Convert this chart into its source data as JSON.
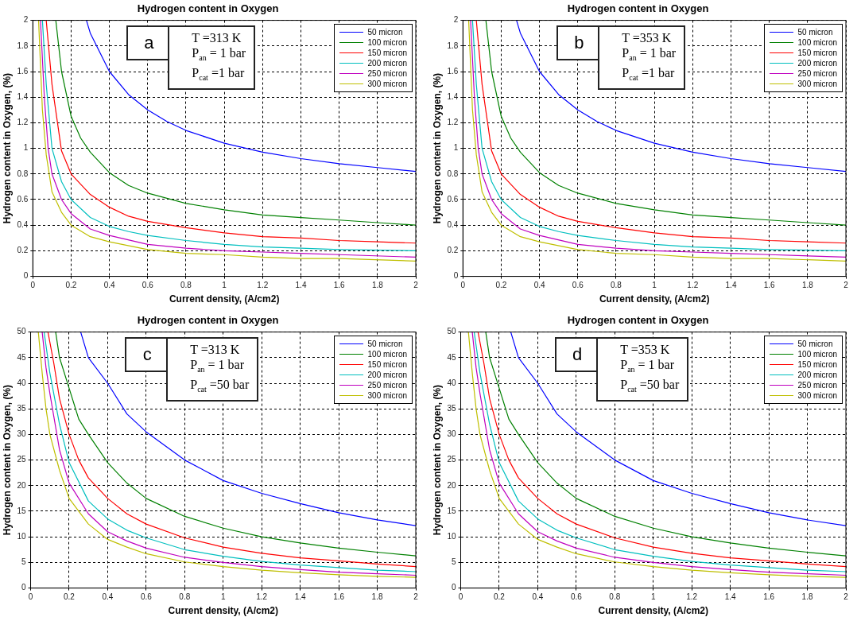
{
  "chart_data": [
    {
      "type": "line",
      "title": "Hydrogen content in Oxygen",
      "xlabel": "Current density, (A/cm2)",
      "ylabel": "Hydrogen content in Oxygen, (%)",
      "xlim": [
        0,
        2
      ],
      "ylim": [
        0,
        2
      ],
      "xticks": [
        0,
        0.2,
        0.4,
        0.6,
        0.8,
        1,
        1.2,
        1.4,
        1.6,
        1.8,
        2
      ],
      "yticks": [
        0,
        0.2,
        0.4,
        0.6,
        0.8,
        1,
        1.2,
        1.4,
        1.6,
        1.8,
        2
      ],
      "grid": true,
      "legend": "top right",
      "annotations": [
        "a",
        "T =313 K",
        "P$_{an}$ = 1 bar",
        "P$_{cat}$ =1 bar"
      ],
      "series": [
        {
          "name": "50 micron",
          "color": "#0000ff",
          "x": [
            0.28,
            0.3,
            0.4,
            0.5,
            0.6,
            0.7,
            0.8,
            1.0,
            1.2,
            1.4,
            1.6,
            1.8,
            2.0
          ],
          "values": [
            2.0,
            1.9,
            1.6,
            1.42,
            1.3,
            1.21,
            1.14,
            1.04,
            0.97,
            0.92,
            0.88,
            0.85,
            0.82
          ]
        },
        {
          "name": "100 micron",
          "color": "#008000",
          "x": [
            0.12,
            0.15,
            0.2,
            0.25,
            0.3,
            0.4,
            0.5,
            0.6,
            0.8,
            1.0,
            1.2,
            1.4,
            1.6,
            1.8,
            2.0
          ],
          "values": [
            2.0,
            1.6,
            1.25,
            1.08,
            0.97,
            0.81,
            0.71,
            0.65,
            0.57,
            0.52,
            0.48,
            0.46,
            0.44,
            0.42,
            0.4
          ]
        },
        {
          "name": "150 micron",
          "color": "#ff0000",
          "x": [
            0.07,
            0.1,
            0.15,
            0.2,
            0.3,
            0.4,
            0.5,
            0.6,
            0.8,
            1.0,
            1.2,
            1.4,
            1.6,
            1.8,
            2.0
          ],
          "values": [
            2.0,
            1.5,
            0.98,
            0.8,
            0.64,
            0.54,
            0.47,
            0.43,
            0.38,
            0.34,
            0.31,
            0.3,
            0.28,
            0.27,
            0.26
          ]
        },
        {
          "name": "200 micron",
          "color": "#00bfbf",
          "x": [
            0.05,
            0.07,
            0.1,
            0.15,
            0.2,
            0.3,
            0.4,
            0.5,
            0.6,
            0.8,
            1.0,
            1.2,
            1.4,
            1.6,
            2.0
          ],
          "values": [
            2.0,
            1.5,
            1.0,
            0.74,
            0.6,
            0.46,
            0.39,
            0.35,
            0.32,
            0.28,
            0.25,
            0.23,
            0.22,
            0.21,
            0.2
          ]
        },
        {
          "name": "250 micron",
          "color": "#bf00bf",
          "x": [
            0.04,
            0.06,
            0.08,
            0.1,
            0.15,
            0.2,
            0.3,
            0.4,
            0.6,
            0.8,
            1.0,
            1.2,
            1.4,
            1.6,
            2.0
          ],
          "values": [
            2.0,
            1.4,
            1.0,
            0.8,
            0.6,
            0.49,
            0.37,
            0.32,
            0.25,
            0.22,
            0.2,
            0.19,
            0.18,
            0.17,
            0.15
          ]
        },
        {
          "name": "300 micron",
          "color": "#bfbf00",
          "x": [
            0.03,
            0.05,
            0.07,
            0.1,
            0.15,
            0.2,
            0.3,
            0.4,
            0.6,
            0.8,
            1.0,
            1.2,
            1.4,
            1.6,
            2.0
          ],
          "values": [
            2.0,
            1.3,
            0.95,
            0.66,
            0.5,
            0.4,
            0.31,
            0.27,
            0.21,
            0.18,
            0.17,
            0.15,
            0.14,
            0.14,
            0.12
          ]
        }
      ]
    },
    {
      "type": "line",
      "title": "Hydrogen content in Oxygen",
      "xlabel": "Current density, (A/cm2)",
      "ylabel": "Hydrogen content in Oxygen, (%)",
      "xlim": [
        0,
        2
      ],
      "ylim": [
        0,
        2
      ],
      "xticks": [
        0,
        0.2,
        0.4,
        0.6,
        0.8,
        1,
        1.2,
        1.4,
        1.6,
        1.8,
        2
      ],
      "yticks": [
        0,
        0.2,
        0.4,
        0.6,
        0.8,
        1,
        1.2,
        1.4,
        1.6,
        1.8,
        2
      ],
      "grid": true,
      "legend": "top right",
      "annotations": [
        "b",
        "T =353 K",
        "P$_{an}$ = 1 bar",
        "P$_{cat}$ =1 bar"
      ],
      "series": [
        {
          "name": "50 micron",
          "color": "#0000ff",
          "x": [
            0.28,
            0.3,
            0.4,
            0.5,
            0.6,
            0.7,
            0.8,
            1.0,
            1.2,
            1.4,
            1.6,
            1.8,
            2.0
          ],
          "values": [
            2.0,
            1.9,
            1.6,
            1.42,
            1.3,
            1.21,
            1.14,
            1.04,
            0.97,
            0.92,
            0.88,
            0.85,
            0.82
          ]
        },
        {
          "name": "100 micron",
          "color": "#008000",
          "x": [
            0.12,
            0.15,
            0.2,
            0.25,
            0.3,
            0.4,
            0.5,
            0.6,
            0.8,
            1.0,
            1.2,
            1.4,
            1.6,
            1.8,
            2.0
          ],
          "values": [
            2.0,
            1.6,
            1.25,
            1.08,
            0.97,
            0.81,
            0.71,
            0.65,
            0.57,
            0.52,
            0.48,
            0.46,
            0.44,
            0.42,
            0.4
          ]
        },
        {
          "name": "150 micron",
          "color": "#ff0000",
          "x": [
            0.07,
            0.1,
            0.15,
            0.2,
            0.3,
            0.4,
            0.5,
            0.6,
            0.8,
            1.0,
            1.2,
            1.4,
            1.6,
            1.8,
            2.0
          ],
          "values": [
            2.0,
            1.5,
            0.98,
            0.8,
            0.64,
            0.54,
            0.47,
            0.43,
            0.38,
            0.34,
            0.31,
            0.3,
            0.28,
            0.27,
            0.26
          ]
        },
        {
          "name": "200 micron",
          "color": "#00bfbf",
          "x": [
            0.05,
            0.07,
            0.1,
            0.15,
            0.2,
            0.3,
            0.4,
            0.5,
            0.6,
            0.8,
            1.0,
            1.2,
            1.4,
            1.6,
            2.0
          ],
          "values": [
            2.0,
            1.5,
            1.0,
            0.74,
            0.6,
            0.46,
            0.39,
            0.35,
            0.32,
            0.28,
            0.25,
            0.23,
            0.22,
            0.21,
            0.2
          ]
        },
        {
          "name": "250 micron",
          "color": "#bf00bf",
          "x": [
            0.04,
            0.06,
            0.08,
            0.1,
            0.15,
            0.2,
            0.3,
            0.4,
            0.6,
            0.8,
            1.0,
            1.2,
            1.4,
            1.6,
            2.0
          ],
          "values": [
            2.0,
            1.4,
            1.0,
            0.8,
            0.6,
            0.49,
            0.37,
            0.32,
            0.25,
            0.22,
            0.2,
            0.19,
            0.18,
            0.17,
            0.15
          ]
        },
        {
          "name": "300 micron",
          "color": "#bfbf00",
          "x": [
            0.03,
            0.05,
            0.07,
            0.1,
            0.15,
            0.2,
            0.3,
            0.4,
            0.6,
            0.8,
            1.0,
            1.2,
            1.4,
            1.6,
            2.0
          ],
          "values": [
            2.0,
            1.3,
            0.95,
            0.66,
            0.5,
            0.4,
            0.31,
            0.27,
            0.21,
            0.18,
            0.17,
            0.15,
            0.14,
            0.14,
            0.12
          ]
        }
      ]
    },
    {
      "type": "line",
      "title": "Hydrogen content in Oxygen",
      "xlabel": "Current density, (A/cm2)",
      "ylabel": "Hydrogen content in Oxygen, (%)",
      "xlim": [
        0,
        2
      ],
      "ylim": [
        0,
        50
      ],
      "xticks": [
        0,
        0.2,
        0.4,
        0.6,
        0.8,
        1,
        1.2,
        1.4,
        1.6,
        1.8,
        2
      ],
      "yticks": [
        0,
        5,
        10,
        15,
        20,
        25,
        30,
        35,
        40,
        45,
        50
      ],
      "grid": true,
      "legend": "top right",
      "annotations": [
        "c",
        "T =313 K",
        "P$_{an}$ = 1 bar",
        "P$_{cat}$ =50 bar"
      ],
      "series": [
        {
          "name": "50 micron",
          "color": "#0000ff",
          "x": [
            0.26,
            0.3,
            0.4,
            0.5,
            0.6,
            0.8,
            1.0,
            1.2,
            1.4,
            1.6,
            1.8,
            2.0
          ],
          "values": [
            50,
            45,
            40,
            34,
            30.5,
            25,
            21,
            18.5,
            16.5,
            14.7,
            13.3,
            12.2
          ]
        },
        {
          "name": "100 micron",
          "color": "#008000",
          "x": [
            0.13,
            0.15,
            0.2,
            0.25,
            0.3,
            0.4,
            0.5,
            0.6,
            0.8,
            1.0,
            1.2,
            1.4,
            1.6,
            1.8,
            2.0
          ],
          "values": [
            50,
            45,
            39,
            33,
            30,
            24.5,
            20.5,
            17.5,
            14,
            11.7,
            10,
            8.8,
            7.8,
            7,
            6.3
          ]
        },
        {
          "name": "150 micron",
          "color": "#ff0000",
          "x": [
            0.09,
            0.12,
            0.15,
            0.2,
            0.25,
            0.3,
            0.4,
            0.5,
            0.6,
            0.8,
            1.0,
            1.2,
            1.4,
            1.6,
            1.8,
            2.0
          ],
          "values": [
            50,
            44,
            37,
            30,
            25,
            21.5,
            17.5,
            14.5,
            12.5,
            9.8,
            8,
            6.8,
            5.9,
            5.3,
            4.7,
            4.2
          ]
        },
        {
          "name": "200 micron",
          "color": "#00bfbf",
          "x": [
            0.07,
            0.1,
            0.15,
            0.2,
            0.3,
            0.4,
            0.5,
            0.6,
            0.8,
            1.0,
            1.2,
            1.4,
            1.6,
            1.8,
            2.0
          ],
          "values": [
            50,
            42,
            32,
            24.5,
            17,
            13.5,
            11.3,
            9.8,
            7.5,
            6.2,
            5.2,
            4.5,
            4,
            3.5,
            3.2
          ]
        },
        {
          "name": "250 micron",
          "color": "#bf00bf",
          "x": [
            0.06,
            0.08,
            0.1,
            0.15,
            0.2,
            0.3,
            0.4,
            0.5,
            0.6,
            0.8,
            1.0,
            1.2,
            1.4,
            1.6,
            1.8,
            2.0
          ],
          "values": [
            50,
            43,
            38,
            27,
            20.5,
            14.5,
            11,
            9.2,
            7.8,
            6,
            5,
            4.2,
            3.6,
            3.1,
            2.8,
            2.5
          ]
        },
        {
          "name": "300 micron",
          "color": "#bfbf00",
          "x": [
            0.04,
            0.06,
            0.08,
            0.1,
            0.15,
            0.2,
            0.3,
            0.4,
            0.5,
            0.6,
            0.8,
            1.0,
            1.2,
            1.4,
            1.6,
            1.8,
            2.0
          ],
          "values": [
            50,
            42,
            35,
            30,
            23,
            17.5,
            12.5,
            9.5,
            8,
            6.7,
            5.1,
            4.2,
            3.5,
            3,
            2.6,
            2.3,
            2.1
          ]
        }
      ]
    },
    {
      "type": "line",
      "title": "Hydrogen content in Oxygen",
      "xlabel": "Current density, (A/cm2)",
      "ylabel": "Hydrogen content in Oxygen, (%)",
      "xlim": [
        0,
        2
      ],
      "ylim": [
        0,
        50
      ],
      "xticks": [
        0,
        0.2,
        0.4,
        0.6,
        0.8,
        1,
        1.2,
        1.4,
        1.6,
        1.8,
        2
      ],
      "yticks": [
        0,
        5,
        10,
        15,
        20,
        25,
        30,
        35,
        40,
        45,
        50
      ],
      "grid": true,
      "legend": "top right",
      "annotations": [
        "d",
        "T =353 K",
        "P$_{an}$ = 1 bar",
        "P$_{cat}$ =50 bar"
      ],
      "series": [
        {
          "name": "50 micron",
          "color": "#0000ff",
          "x": [
            0.26,
            0.3,
            0.4,
            0.5,
            0.6,
            0.8,
            1.0,
            1.2,
            1.4,
            1.6,
            1.8,
            2.0
          ],
          "values": [
            50,
            45,
            40,
            34,
            30.5,
            25,
            21,
            18.5,
            16.5,
            14.7,
            13.3,
            12.2
          ]
        },
        {
          "name": "100 micron",
          "color": "#008000",
          "x": [
            0.13,
            0.15,
            0.2,
            0.25,
            0.3,
            0.4,
            0.5,
            0.6,
            0.8,
            1.0,
            1.2,
            1.4,
            1.6,
            1.8,
            2.0
          ],
          "values": [
            50,
            45,
            39,
            33,
            30,
            24.5,
            20.5,
            17.5,
            14,
            11.7,
            10,
            8.8,
            7.8,
            7,
            6.3
          ]
        },
        {
          "name": "150 micron",
          "color": "#ff0000",
          "x": [
            0.09,
            0.12,
            0.15,
            0.2,
            0.25,
            0.3,
            0.4,
            0.5,
            0.6,
            0.8,
            1.0,
            1.2,
            1.4,
            1.6,
            1.8,
            2.0
          ],
          "values": [
            50,
            44,
            37,
            30,
            25,
            21.5,
            17.5,
            14.5,
            12.5,
            9.8,
            8,
            6.8,
            5.9,
            5.3,
            4.7,
            4.2
          ]
        },
        {
          "name": "200 micron",
          "color": "#00bfbf",
          "x": [
            0.07,
            0.1,
            0.15,
            0.2,
            0.3,
            0.4,
            0.5,
            0.6,
            0.8,
            1.0,
            1.2,
            1.4,
            1.6,
            1.8,
            2.0
          ],
          "values": [
            50,
            42,
            32,
            24.5,
            17,
            13.5,
            11.3,
            9.8,
            7.5,
            6.2,
            5.2,
            4.5,
            4,
            3.5,
            3.2
          ]
        },
        {
          "name": "250 micron",
          "color": "#bf00bf",
          "x": [
            0.06,
            0.08,
            0.1,
            0.15,
            0.2,
            0.3,
            0.4,
            0.5,
            0.6,
            0.8,
            1.0,
            1.2,
            1.4,
            1.6,
            1.8,
            2.0
          ],
          "values": [
            50,
            43,
            38,
            27,
            20.5,
            14.5,
            11,
            9.2,
            7.8,
            6,
            5,
            4.2,
            3.6,
            3.1,
            2.8,
            2.5
          ]
        },
        {
          "name": "300 micron",
          "color": "#bfbf00",
          "x": [
            0.04,
            0.06,
            0.08,
            0.1,
            0.15,
            0.2,
            0.3,
            0.4,
            0.5,
            0.6,
            0.8,
            1.0,
            1.2,
            1.4,
            1.6,
            1.8,
            2.0
          ],
          "values": [
            50,
            42,
            35,
            30,
            23,
            17.5,
            12.5,
            9.5,
            8,
            6.7,
            5.1,
            4.2,
            3.5,
            3,
            2.6,
            2.3,
            2.1
          ]
        }
      ]
    }
  ]
}
